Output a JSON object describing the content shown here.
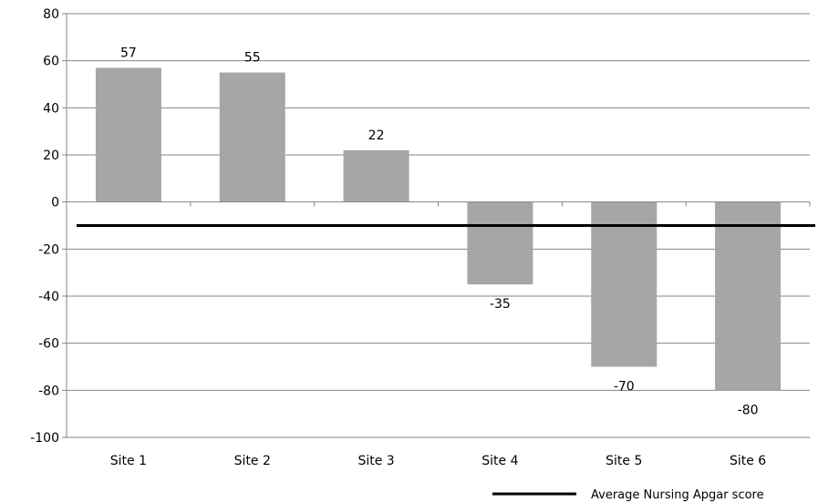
{
  "chart_data": {
    "type": "bar",
    "categories": [
      "Site 1",
      "Site 2",
      "Site 3",
      "Site 4",
      "Site 5",
      "Site 6"
    ],
    "values": [
      57,
      55,
      22,
      -35,
      -70,
      -80
    ],
    "data_labels": [
      "57",
      "55",
      "22",
      "-35",
      "-70",
      "-80"
    ],
    "reference_line": {
      "name": "Average Nursing Apgar score",
      "value": -10
    },
    "yticks": [
      80,
      60,
      40,
      20,
      0,
      -20,
      -40,
      -60,
      -80,
      -100
    ],
    "ylim": [
      -100,
      80
    ],
    "grid": true,
    "legend_position": "bottom-right",
    "colors": {
      "bar": "#a6a6a6",
      "line": "#000000",
      "grid": "#868686",
      "axis": "#868686"
    }
  }
}
